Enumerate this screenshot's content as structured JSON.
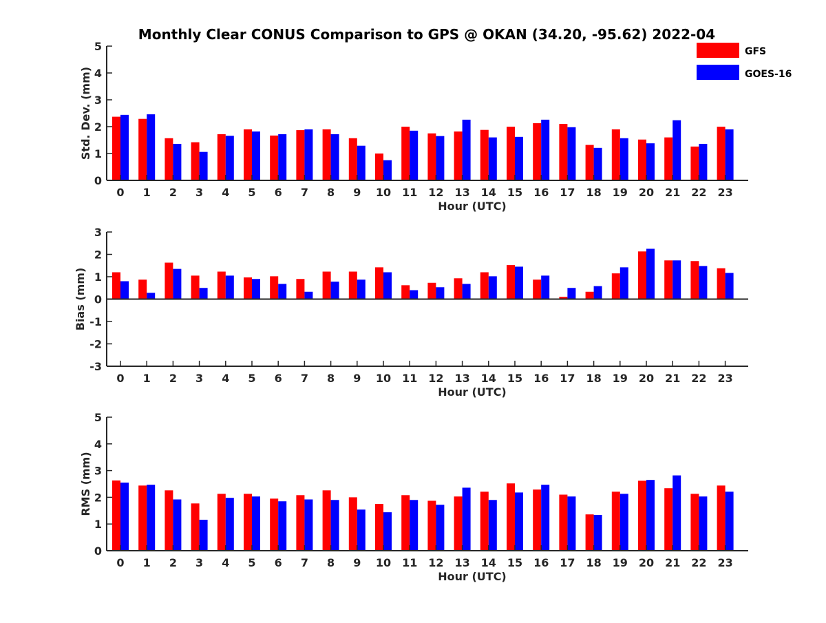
{
  "title": "Monthly Clear CONUS Comparison to GPS @ OKAN (34.20, -95.62) 2022-04",
  "legend": {
    "placement": "top-right",
    "entries": [
      {
        "label": "GFS",
        "color": "#ff0000"
      },
      {
        "label": "GOES-16",
        "color": "#0000ff"
      }
    ]
  },
  "chart_data": [
    {
      "type": "bar",
      "xlabel": "Hour (UTC)",
      "ylabel": "Std. Dev. (mm)",
      "ylim": [
        0,
        5
      ],
      "yticks": [
        "0",
        "1",
        "2",
        "3",
        "4",
        "5"
      ],
      "categories": [
        "0",
        "1",
        "2",
        "3",
        "4",
        "5",
        "6",
        "7",
        "8",
        "9",
        "10",
        "11",
        "12",
        "13",
        "14",
        "15",
        "16",
        "17",
        "18",
        "19",
        "20",
        "21",
        "22",
        "23"
      ],
      "series": [
        {
          "name": "GFS",
          "color": "#ff0000",
          "values": [
            2.37,
            2.29,
            1.57,
            1.42,
            1.72,
            1.9,
            1.67,
            1.87,
            1.9,
            1.57,
            1.0,
            2.0,
            1.75,
            1.82,
            1.88,
            2.0,
            2.13,
            2.1,
            1.32,
            1.9,
            1.52,
            1.6,
            1.26,
            2.0
          ]
        },
        {
          "name": "GOES-16",
          "color": "#0000ff",
          "values": [
            2.44,
            2.46,
            1.36,
            1.06,
            1.66,
            1.82,
            1.72,
            1.9,
            1.72,
            1.29,
            0.75,
            1.85,
            1.65,
            2.26,
            1.6,
            1.62,
            2.26,
            1.98,
            1.21,
            1.57,
            1.38,
            2.24,
            1.36,
            1.9
          ]
        }
      ]
    },
    {
      "type": "bar",
      "xlabel": "Hour (UTC)",
      "ylabel": "Bias (mm)",
      "ylim": [
        -3,
        3
      ],
      "yticks": [
        "-3",
        "-2",
        "-1",
        "0",
        "1",
        "2",
        "3"
      ],
      "categories": [
        "0",
        "1",
        "2",
        "3",
        "4",
        "5",
        "6",
        "7",
        "8",
        "9",
        "10",
        "11",
        "12",
        "13",
        "14",
        "15",
        "16",
        "17",
        "18",
        "19",
        "20",
        "21",
        "22",
        "23"
      ],
      "series": [
        {
          "name": "GFS",
          "color": "#ff0000",
          "values": [
            1.2,
            0.87,
            1.63,
            1.05,
            1.23,
            0.97,
            1.02,
            0.9,
            1.23,
            1.23,
            1.42,
            0.62,
            0.73,
            0.93,
            1.2,
            1.52,
            0.87,
            0.1,
            0.33,
            1.15,
            2.13,
            1.73,
            1.7,
            1.38
          ]
        },
        {
          "name": "GOES-16",
          "color": "#0000ff",
          "values": [
            0.8,
            0.28,
            1.35,
            0.5,
            1.05,
            0.9,
            0.68,
            0.33,
            0.78,
            0.87,
            1.2,
            0.4,
            0.53,
            0.68,
            1.02,
            1.45,
            1.05,
            0.5,
            0.58,
            1.42,
            2.25,
            1.73,
            1.48,
            1.17
          ]
        }
      ]
    },
    {
      "type": "bar",
      "xlabel": "Hour (UTC)",
      "ylabel": "RMS (mm)",
      "ylim": [
        0,
        5
      ],
      "yticks": [
        "0",
        "1",
        "2",
        "3",
        "4",
        "5"
      ],
      "categories": [
        "0",
        "1",
        "2",
        "3",
        "4",
        "5",
        "6",
        "7",
        "8",
        "9",
        "10",
        "11",
        "12",
        "13",
        "14",
        "15",
        "16",
        "17",
        "18",
        "19",
        "20",
        "21",
        "22",
        "23"
      ],
      "series": [
        {
          "name": "GFS",
          "color": "#ff0000",
          "values": [
            2.63,
            2.44,
            2.26,
            1.77,
            2.13,
            2.13,
            1.95,
            2.08,
            2.26,
            2.0,
            1.75,
            2.08,
            1.87,
            2.03,
            2.21,
            2.52,
            2.29,
            2.1,
            1.36,
            2.21,
            2.62,
            2.34,
            2.13,
            2.44
          ]
        },
        {
          "name": "GOES-16",
          "color": "#0000ff",
          "values": [
            2.55,
            2.47,
            1.92,
            1.16,
            1.98,
            2.03,
            1.85,
            1.92,
            1.9,
            1.54,
            1.44,
            1.9,
            1.72,
            2.36,
            1.9,
            2.18,
            2.47,
            2.03,
            1.34,
            2.13,
            2.65,
            2.82,
            2.03,
            2.21
          ]
        }
      ]
    }
  ]
}
